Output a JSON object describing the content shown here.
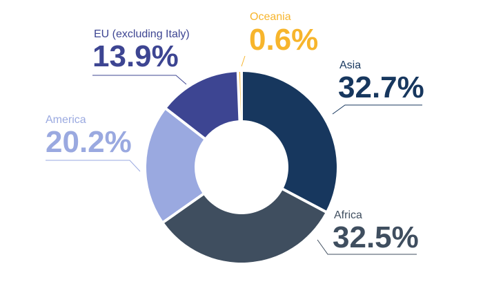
{
  "chart_data": {
    "type": "pie",
    "title": "",
    "slices": [
      {
        "name": "Asia",
        "value": 32.7,
        "display": "32.7%",
        "color": "#17375e"
      },
      {
        "name": "Africa",
        "value": 32.5,
        "display": "32.5%",
        "color": "#3f4e5f"
      },
      {
        "name": "America",
        "value": 20.2,
        "display": "20.2%",
        "color": "#9aa9e0"
      },
      {
        "name": "EU (excluding Italy)",
        "value": 13.9,
        "display": "13.9%",
        "color": "#3d4592"
      },
      {
        "name": "Oceania",
        "value": 0.6,
        "display": "0.6%",
        "color": "#f7b52c"
      }
    ],
    "label_colors": {
      "Asia": "#17375e",
      "Africa": "#3f4e5f",
      "America": "#9aa9e0",
      "EU (excluding Italy)": "#3d4592",
      "Oceania": "#f7b52c"
    }
  }
}
